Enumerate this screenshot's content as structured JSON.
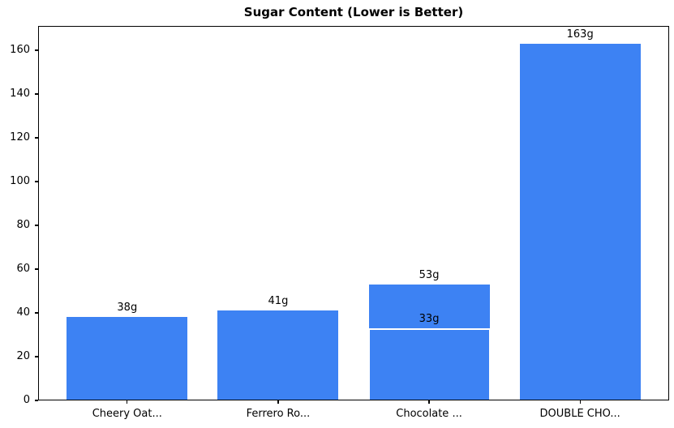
{
  "chart_data": {
    "type": "bar",
    "title": "Sugar Content (Lower is Better)",
    "categories": [
      "Cheery Oat...",
      "Ferrero Ro...",
      "Chocolate ...",
      "DOUBLE CHO..."
    ],
    "series": [
      {
        "name": "sugar-main",
        "values": [
          38,
          41,
          53,
          163
        ],
        "labels": [
          "38g",
          "41g",
          "53g",
          "163g"
        ]
      },
      {
        "name": "sugar-overlay",
        "values": [
          null,
          null,
          33,
          null
        ],
        "labels": [
          null,
          null,
          "33g",
          null
        ]
      }
    ],
    "xlabel": "",
    "ylabel": "",
    "ylim": [
      0,
      171.15
    ],
    "yticks": [
      0,
      20,
      40,
      60,
      80,
      100,
      120,
      140,
      160
    ],
    "grid": false,
    "legend": null,
    "colors": {
      "bar": "#3d82f3",
      "overlay_edge": "#ffffff",
      "text": "#000000",
      "spine": "#000000",
      "background": "#ffffff"
    }
  }
}
